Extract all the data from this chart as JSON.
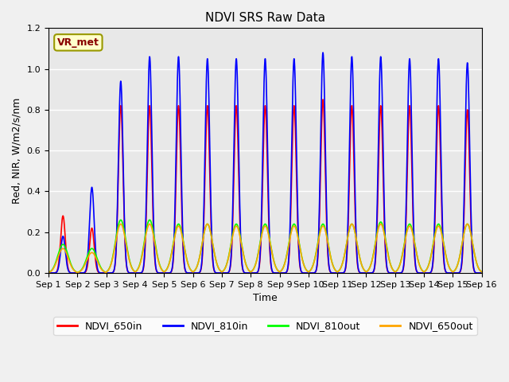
{
  "title": "NDVI SRS Raw Data",
  "xlabel": "Time",
  "ylabel": "Red, NIR, W/m2/s/nm",
  "ylim": [
    0,
    1.2
  ],
  "xlim": [
    0,
    15
  ],
  "x_tick_labels": [
    "Sep 1",
    "Sep 2",
    "Sep 3",
    "Sep 4",
    "Sep 5",
    "Sep 6",
    "Sep 7",
    "Sep 8",
    "Sep 9",
    "Sep 10",
    "Sep 11",
    "Sep 12",
    "Sep 13",
    "Sep 14",
    "Sep 15",
    "Sep 16"
  ],
  "annotation_text": "VR_met",
  "annotation_box_facecolor": "#FFFFCC",
  "annotation_box_edgecolor": "#999900",
  "annotation_text_color": "#880000",
  "series_colors": [
    "red",
    "blue",
    "lime",
    "orange"
  ],
  "series_labels": [
    "NDVI_650in",
    "NDVI_810in",
    "NDVI_810out",
    "NDVI_650out"
  ],
  "series_linewidths": [
    1.2,
    1.2,
    1.2,
    1.2
  ],
  "bg_color": "#f0f0f0",
  "plot_bg_color": "#e8e8e8",
  "grid_color": "white",
  "title_fontsize": 11,
  "label_fontsize": 9,
  "tick_fontsize": 8,
  "legend_fontsize": 9,
  "day_peaks_650in": [
    0.28,
    0.22,
    0.82,
    0.82,
    0.82,
    0.82,
    0.82,
    0.82,
    0.82,
    0.85,
    0.82,
    0.82,
    0.82,
    0.82,
    0.8
  ],
  "day_peaks_810in": [
    0.18,
    0.42,
    0.94,
    1.06,
    1.06,
    1.05,
    1.05,
    1.05,
    1.05,
    1.08,
    1.06,
    1.06,
    1.05,
    1.05,
    1.03
  ],
  "day_peaks_810out": [
    0.14,
    0.12,
    0.26,
    0.26,
    0.24,
    0.24,
    0.24,
    0.24,
    0.24,
    0.24,
    0.24,
    0.25,
    0.24,
    0.24,
    0.24
  ],
  "day_peaks_650out": [
    0.12,
    0.1,
    0.24,
    0.24,
    0.23,
    0.24,
    0.23,
    0.23,
    0.23,
    0.23,
    0.24,
    0.24,
    0.23,
    0.23,
    0.24
  ],
  "samples_per_day": 500,
  "total_days": 15
}
